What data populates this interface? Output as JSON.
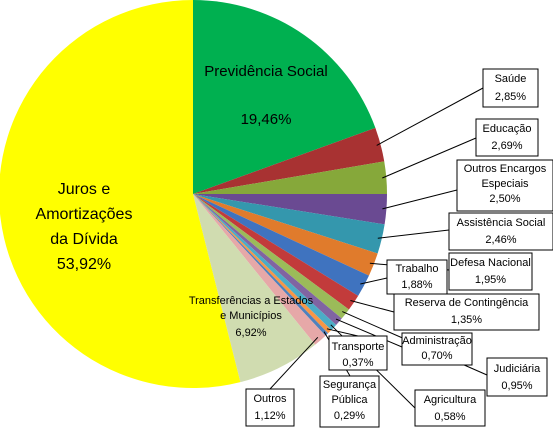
{
  "chart_data": {
    "type": "pie",
    "title": "",
    "slices": [
      {
        "label": "Previdência Social",
        "value_label": "19,46%",
        "value": 19.46,
        "color": "#00b050"
      },
      {
        "label": "Saúde",
        "value_label": "2,85%",
        "value": 2.85,
        "color": "#a83232"
      },
      {
        "label": "Educação",
        "value_label": "2,69%",
        "value": 2.69,
        "color": "#86a83a"
      },
      {
        "label": "Outros Encargos Especiais",
        "value_label": "2,50%",
        "value": 2.5,
        "color": "#6a4a92"
      },
      {
        "label": "Assistência Social",
        "value_label": "2,46%",
        "value": 2.46,
        "color": "#3497ad"
      },
      {
        "label": "Defesa Nacional",
        "value_label": "1,95%",
        "value": 1.95,
        "color": "#e07b2c"
      },
      {
        "label": "Trabalho",
        "value_label": "1,88%",
        "value": 1.88,
        "color": "#3f73bf"
      },
      {
        "label": "Reserva de Contingência",
        "value_label": "1,35%",
        "value": 1.35,
        "color": "#c23b3b"
      },
      {
        "label": "Judiciária",
        "value_label": "0,95%",
        "value": 0.95,
        "color": "#9bbb59"
      },
      {
        "label": "Administração",
        "value_label": "0,70%",
        "value": 0.7,
        "color": "#8064a2"
      },
      {
        "label": "Agricultura",
        "value_label": "0,58%",
        "value": 0.58,
        "color": "#4bacc6"
      },
      {
        "label": "Transporte",
        "value_label": "0,37%",
        "value": 0.37,
        "color": "#f79646"
      },
      {
        "label": "Segurança Pública",
        "value_label": "0,29%",
        "value": 0.29,
        "color": "#4f81bd"
      },
      {
        "label": "Outros",
        "value_label": "1,12%",
        "value": 1.12,
        "color": "#e6a8a8"
      },
      {
        "label": "Transferências a Estados e Municípios",
        "value_label": "6,92%",
        "value": 6.92,
        "color": "#d0dcb0"
      },
      {
        "label": "Juros e Amortizações da Dívida",
        "value_label": "53,92%",
        "value": 53.92,
        "color": "#ffff00"
      }
    ]
  }
}
